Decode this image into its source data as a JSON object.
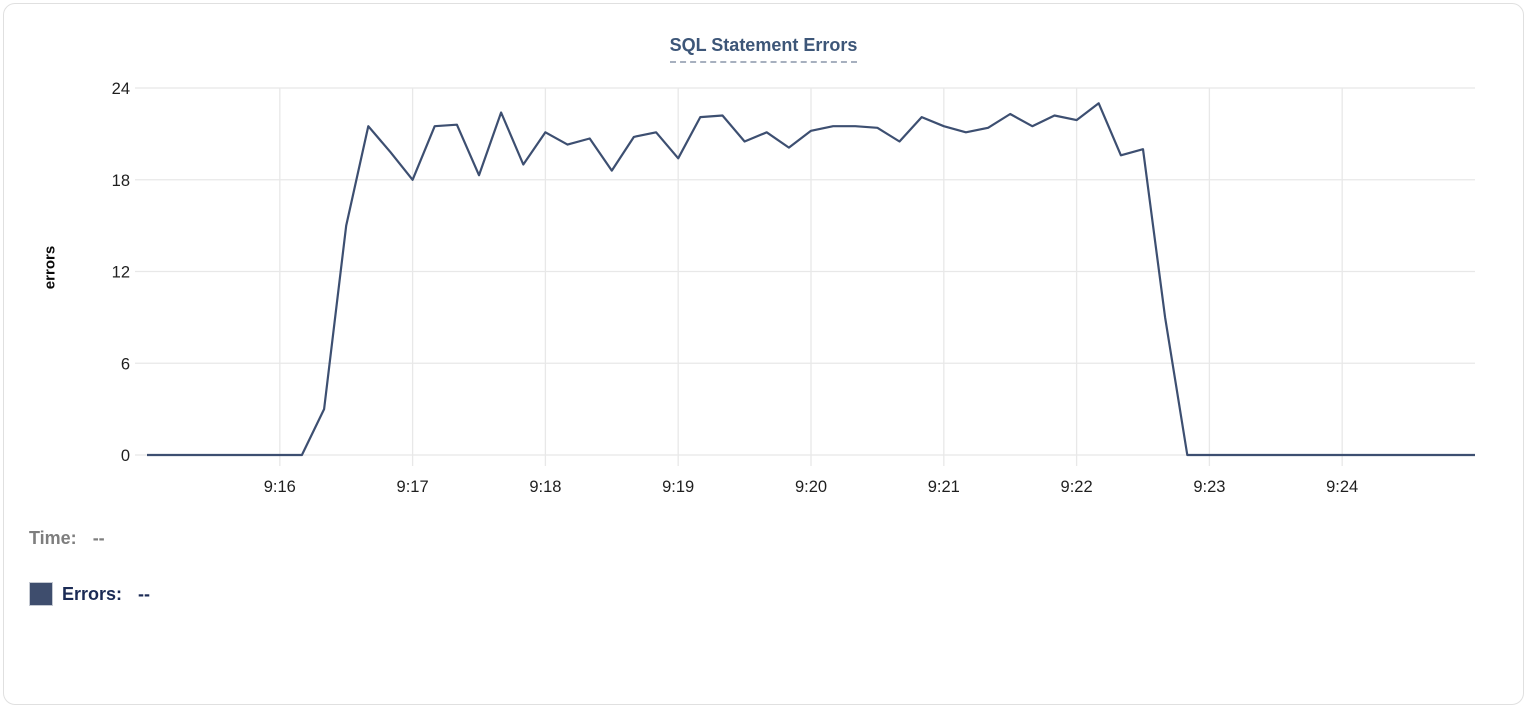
{
  "chart_data": {
    "type": "line",
    "title": "SQL Statement Errors",
    "xlabel": "",
    "ylabel": "errors",
    "ylim": [
      0,
      24
    ],
    "yticks": [
      0,
      6,
      12,
      18,
      24
    ],
    "xtick_labels": [
      "9:16",
      "9:17",
      "9:18",
      "9:19",
      "9:20",
      "9:21",
      "9:22",
      "9:23",
      "9:24"
    ],
    "x_start": "9:15:00",
    "x_end": "9:25:00",
    "sample_interval_seconds": 10,
    "grid": true,
    "legend_position": "bottom-left",
    "x": [
      "9:15:00",
      "9:15:10",
      "9:15:20",
      "9:15:30",
      "9:15:40",
      "9:15:50",
      "9:16:00",
      "9:16:10",
      "9:16:20",
      "9:16:30",
      "9:16:40",
      "9:16:50",
      "9:17:00",
      "9:17:10",
      "9:17:20",
      "9:17:30",
      "9:17:40",
      "9:17:50",
      "9:18:00",
      "9:18:10",
      "9:18:20",
      "9:18:30",
      "9:18:40",
      "9:18:50",
      "9:19:00",
      "9:19:10",
      "9:19:20",
      "9:19:30",
      "9:19:40",
      "9:19:50",
      "9:20:00",
      "9:20:10",
      "9:20:20",
      "9:20:30",
      "9:20:40",
      "9:20:50",
      "9:21:00",
      "9:21:10",
      "9:21:20",
      "9:21:30",
      "9:21:40",
      "9:21:50",
      "9:22:00",
      "9:22:10",
      "9:22:20",
      "9:22:30",
      "9:22:40",
      "9:22:50",
      "9:23:00",
      "9:23:10",
      "9:23:20",
      "9:23:30",
      "9:23:40",
      "9:23:50",
      "9:24:00",
      "9:24:10",
      "9:24:20",
      "9:24:30",
      "9:24:40",
      "9:24:50",
      "9:25:00"
    ],
    "series": [
      {
        "name": "Errors",
        "values": [
          0,
          0,
          0,
          0,
          0,
          0,
          0,
          0,
          3,
          15,
          21.5,
          19.8,
          18,
          21.5,
          21.6,
          18.3,
          22.4,
          19,
          21.1,
          20.3,
          20.7,
          18.6,
          20.8,
          21.1,
          19.4,
          22.1,
          22.2,
          20.5,
          21.1,
          20.1,
          21.2,
          21.5,
          21.5,
          21.4,
          20.5,
          22.1,
          21.5,
          21.1,
          21.4,
          22.3,
          21.5,
          22.2,
          21.9,
          23,
          19.6,
          20,
          9,
          0,
          0,
          0,
          0,
          0,
          0,
          0,
          0,
          0,
          0,
          0,
          0,
          0,
          0
        ]
      }
    ]
  },
  "legend": {
    "time_label": "Time:",
    "time_value": "--",
    "errors_label": "Errors:",
    "errors_value": "--"
  },
  "colors": {
    "line": "#3d4f71",
    "title": "#3d5678",
    "title_underline": "#a7b0bf",
    "legend_time": "#7e7e7e",
    "legend_errors": "#1b2b55",
    "swatch": "#3e4d6d",
    "grid": "#e8e8e8",
    "tick_text": "#1f1f1f",
    "card_border": "#e0e0e0"
  }
}
